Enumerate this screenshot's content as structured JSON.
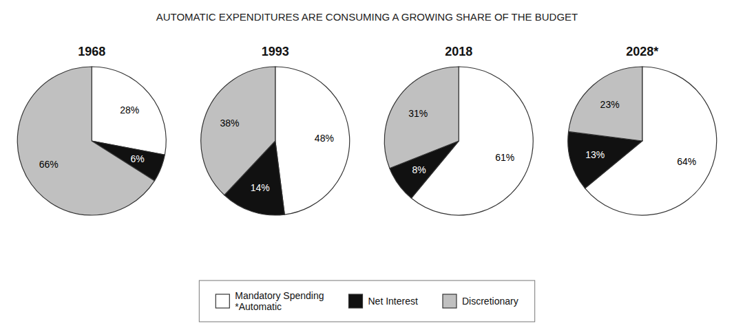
{
  "chart_data": {
    "type": "pie",
    "title": "AUTOMATIC EXPENDITURES ARE CONSUMING A GROWING SHARE OF THE BUDGET",
    "categories": [
      "Mandatory Spending\n*Automatic",
      "Net Interest",
      "Discretionary"
    ],
    "colors": [
      "#ffffff",
      "#111111",
      "#c0c0c0"
    ],
    "series": [
      {
        "name": "1968",
        "values": [
          28,
          6,
          66
        ],
        "value_labels": [
          "28%",
          "6%",
          "66%"
        ]
      },
      {
        "name": "1993",
        "values": [
          48,
          14,
          38
        ],
        "value_labels": [
          "48%",
          "14%",
          "38%"
        ]
      },
      {
        "name": "2018",
        "values": [
          61,
          8,
          31
        ],
        "value_labels": [
          "61%",
          "8%",
          "31%"
        ]
      },
      {
        "name": "2028*",
        "values": [
          64,
          13,
          23
        ],
        "value_labels": [
          "64%",
          "13%",
          "23%"
        ]
      }
    ],
    "data_labels": true,
    "legend": "bottom"
  }
}
